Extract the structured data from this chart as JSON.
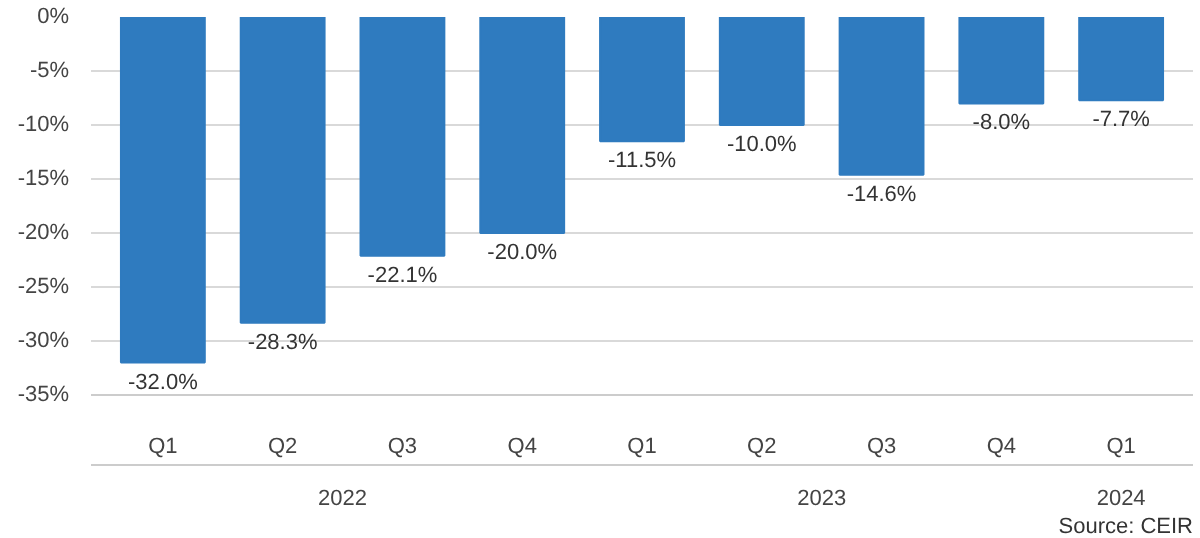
{
  "chart_data": {
    "type": "bar",
    "categories": [
      "Q1",
      "Q2",
      "Q3",
      "Q4",
      "Q1",
      "Q2",
      "Q3",
      "Q4",
      "Q1"
    ],
    "values": [
      -32.0,
      -28.3,
      -22.1,
      -20.0,
      -11.5,
      -10.0,
      -14.6,
      -8.0,
      -7.7
    ],
    "value_labels": [
      "-32.0%",
      "-28.3%",
      "-22.1%",
      "-20.0%",
      "-11.5%",
      "-10.0%",
      "-14.6%",
      "-8.0%",
      "-7.7%"
    ],
    "color": "#2f7bbf",
    "ylim": [
      -35,
      0
    ],
    "yticks": [
      {
        "value": 0,
        "label": "0%"
      },
      {
        "value": -5,
        "label": "-5%"
      },
      {
        "value": -10,
        "label": "-10%"
      },
      {
        "value": -15,
        "label": "-15%"
      },
      {
        "value": -20,
        "label": "-20%"
      },
      {
        "value": -25,
        "label": "-25%"
      },
      {
        "value": -30,
        "label": "-30%"
      },
      {
        "value": -35,
        "label": "-35%"
      }
    ],
    "grid": "y",
    "annotations": [
      "2022",
      "2023",
      "2024",
      "Source: CEIR"
    ]
  }
}
